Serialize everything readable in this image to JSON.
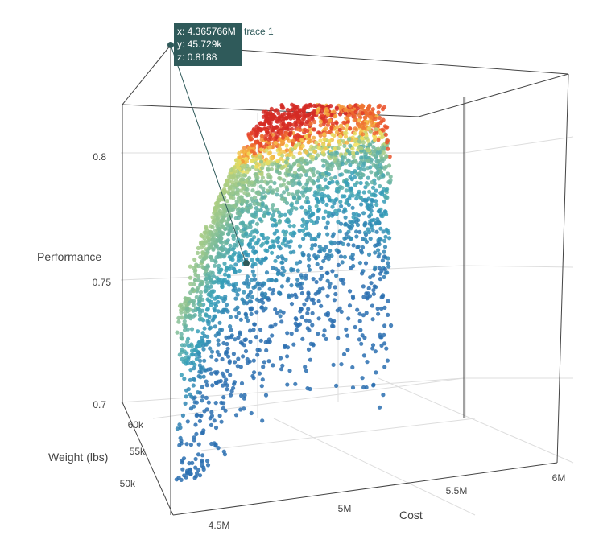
{
  "chart_data": {
    "type": "scatter",
    "title": "",
    "axes": {
      "x": {
        "label": "Cost",
        "ticks": [
          "4.5M",
          "5M",
          "5.5M",
          "6M"
        ],
        "range": [
          4.3,
          6.05
        ]
      },
      "y": {
        "label": "Weight (lbs)",
        "ticks": [
          "50k",
          "55k",
          "60k"
        ],
        "range": [
          45,
          63
        ]
      },
      "z": {
        "label": "Performance",
        "ticks": [
          "0.7",
          "0.75",
          "0.8"
        ],
        "range": [
          0.695,
          0.83
        ]
      }
    },
    "grid": true,
    "colorscale": [
      "#2a6fb0",
      "#36a0b8",
      "#9ec98a",
      "#f2e05a",
      "#f5a53a",
      "#e8452a",
      "#d42a25"
    ],
    "series": [
      {
        "name": "trace 1",
        "point_count": 4200,
        "sample_points": [
          {
            "x": 4.36,
            "y": 46.5,
            "z": 0.76
          },
          {
            "x": 4.55,
            "y": 48.0,
            "z": 0.775
          },
          {
            "x": 4.8,
            "y": 52.0,
            "z": 0.79
          },
          {
            "x": 5.1,
            "y": 55.0,
            "z": 0.805
          },
          {
            "x": 5.4,
            "y": 58.0,
            "z": 0.815
          },
          {
            "x": 5.7,
            "y": 61.0,
            "z": 0.82
          },
          {
            "x": 4.45,
            "y": 49.0,
            "z": 0.72
          },
          {
            "x": 5.0,
            "y": 56.0,
            "z": 0.74
          },
          {
            "x": 5.6,
            "y": 60.0,
            "z": 0.76
          }
        ]
      }
    ],
    "hover": {
      "x": "x: 4.365766M",
      "y": "y: 45.729k",
      "z": "z: 0.8188",
      "trace": "trace 1"
    }
  }
}
